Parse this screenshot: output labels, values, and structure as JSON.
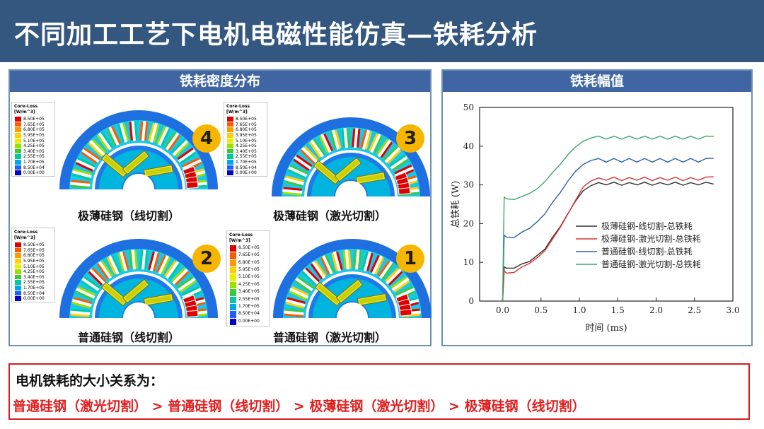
{
  "header": {
    "title": "不同加工工艺下电机电磁性能仿真—铁耗分析"
  },
  "left_panel": {
    "title": "铁耗密度分布",
    "legend_title_1": "Core-Loss",
    "legend_title_2": "[W/m^3]",
    "legend_values": [
      "8.50E+05",
      "7.65E+05",
      "6.80E+05",
      "5.95E+05",
      "5.10E+05",
      "4.25E+05",
      "3.40E+05",
      "2.55E+05",
      "1.70E+05",
      "8.50E+04",
      "0.00E+00"
    ],
    "legend_colors": [
      "#e00000",
      "#ff5a00",
      "#ff9a00",
      "#ffd000",
      "#e8f000",
      "#9ce000",
      "#3cc83c",
      "#00c8a0",
      "#00a8e8",
      "#2060ff",
      "#0000c8"
    ],
    "motors": [
      {
        "badge": "4",
        "label": "极薄硅钢（线切割）"
      },
      {
        "badge": "3",
        "label": "极薄硅钢（激光切割）"
      },
      {
        "badge": "2",
        "label": "普通硅钢（线切割）"
      },
      {
        "badge": "1",
        "label": "普通硅钢（激光切割）"
      }
    ]
  },
  "right_panel": {
    "title": "铁耗幅值"
  },
  "chart_data": {
    "type": "line",
    "xlabel": "时间 (ms)",
    "ylabel": "总铁耗 (W)",
    "xlim": [
      -0.3,
      3.0
    ],
    "ylim": [
      0,
      50
    ],
    "xticks": [
      "0.0",
      "0.5",
      "1.0",
      "1.5",
      "2.0",
      "2.5",
      "3.0"
    ],
    "yticks": [
      "0",
      "10",
      "20",
      "30",
      "40",
      "50"
    ],
    "legend_position": "bottom-right",
    "series": [
      {
        "name": "极薄硅钢-线切割-总铁耗",
        "color": "#333333",
        "x": [
          0,
          0.02,
          0.05,
          0.15,
          0.25,
          0.35,
          0.45,
          0.55,
          0.65,
          0.75,
          0.85,
          0.95,
          1.05,
          1.15,
          1.25,
          1.35,
          1.45,
          1.55,
          1.65,
          1.75,
          1.85,
          1.95,
          2.05,
          2.15,
          2.25,
          2.35,
          2.45,
          2.55,
          2.65,
          2.75
        ],
        "y": [
          0,
          8.8,
          8.5,
          8.5,
          9.6,
          10.2,
          11.8,
          13.4,
          16.5,
          19.2,
          22.6,
          25.8,
          28.5,
          29.8,
          30.6,
          30.0,
          30.7,
          29.9,
          30.6,
          30.0,
          30.7,
          29.9,
          30.6,
          30.0,
          30.7,
          29.9,
          30.6,
          30.0,
          30.7,
          30.2
        ]
      },
      {
        "name": "极薄硅钢-激光切割-总铁耗",
        "color": "#d83030",
        "x": [
          0,
          0.02,
          0.05,
          0.15,
          0.25,
          0.35,
          0.45,
          0.55,
          0.65,
          0.75,
          0.85,
          0.95,
          1.05,
          1.15,
          1.25,
          1.35,
          1.45,
          1.55,
          1.65,
          1.75,
          1.85,
          1.95,
          2.05,
          2.15,
          2.25,
          2.35,
          2.45,
          2.55,
          2.65,
          2.75
        ],
        "y": [
          0,
          7.8,
          7.2,
          7.4,
          8.8,
          9.7,
          11.2,
          13.0,
          16.0,
          19.0,
          22.5,
          26.0,
          29.5,
          31.0,
          31.8,
          31.2,
          32.0,
          31.1,
          31.9,
          31.2,
          32.0,
          31.1,
          31.9,
          31.2,
          32.0,
          31.1,
          31.9,
          31.2,
          32.0,
          32.1
        ]
      },
      {
        "name": "普通硅钢-线切割-总铁耗",
        "color": "#2e5fa8",
        "x": [
          0,
          0.02,
          0.05,
          0.15,
          0.25,
          0.35,
          0.45,
          0.55,
          0.65,
          0.75,
          0.85,
          0.95,
          1.05,
          1.15,
          1.25,
          1.35,
          1.45,
          1.55,
          1.65,
          1.75,
          1.85,
          1.95,
          2.05,
          2.15,
          2.25,
          2.35,
          2.45,
          2.55,
          2.65,
          2.75
        ],
        "y": [
          0,
          17.0,
          16.5,
          16.4,
          17.8,
          18.8,
          20.5,
          22.5,
          25.5,
          28.0,
          31.0,
          33.5,
          35.3,
          36.3,
          36.8,
          35.9,
          36.8,
          35.9,
          36.8,
          35.9,
          36.8,
          35.9,
          36.8,
          35.9,
          36.8,
          35.9,
          36.8,
          35.9,
          36.8,
          36.9
        ]
      },
      {
        "name": "普通硅钢-激光切割-总铁耗",
        "color": "#3aa86a",
        "x": [
          0,
          0.02,
          0.05,
          0.15,
          0.25,
          0.35,
          0.45,
          0.55,
          0.65,
          0.75,
          0.85,
          0.95,
          1.05,
          1.15,
          1.25,
          1.35,
          1.45,
          1.55,
          1.65,
          1.75,
          1.85,
          1.95,
          2.05,
          2.15,
          2.25,
          2.35,
          2.45,
          2.55,
          2.65,
          2.75
        ],
        "y": [
          0,
          26.8,
          26.4,
          26.2,
          27.0,
          27.8,
          29.0,
          30.8,
          33.2,
          35.3,
          37.8,
          39.8,
          41.3,
          42.1,
          42.6,
          41.8,
          42.6,
          41.8,
          42.6,
          41.8,
          42.6,
          41.8,
          42.6,
          41.8,
          42.6,
          41.8,
          42.6,
          41.8,
          42.6,
          42.5
        ]
      }
    ]
  },
  "summary": {
    "line1": "电机铁耗的大小关系为：",
    "items": [
      "普通硅钢（激光切割）",
      "普通硅钢（线切割）",
      "极薄硅钢（激光切割）",
      "极薄硅钢（线切割）"
    ],
    "separator": ">"
  }
}
